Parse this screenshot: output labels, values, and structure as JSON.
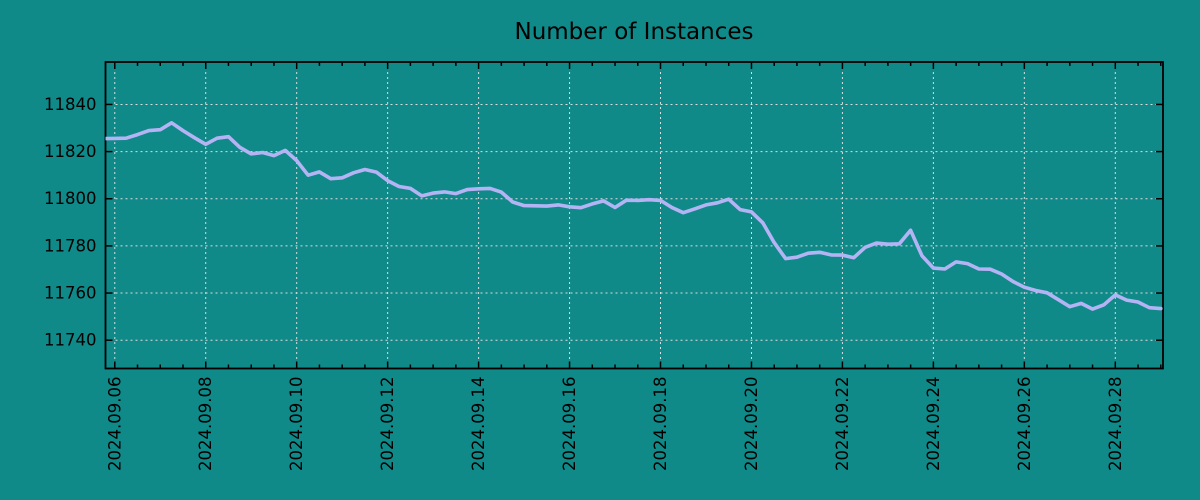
{
  "title": "Number of Instances",
  "colors": {
    "background": "#108989",
    "line": "#b4b4f5",
    "grid": "#dcdcdc",
    "axis": "#000000"
  },
  "chart_data": {
    "type": "line",
    "title": "Number of Instances",
    "xlabel": "",
    "ylabel": "",
    "grid": true,
    "legend": "none",
    "ylim": [
      11728,
      11858
    ],
    "y_ticks": [
      11740,
      11760,
      11780,
      11800,
      11820,
      11840
    ],
    "xlim_day": [
      5.796,
      29.049
    ],
    "x_major_days": [
      6,
      8,
      10,
      12,
      14,
      16,
      18,
      20,
      22,
      24,
      26,
      28
    ],
    "x_tick_labels": [
      "2024.09.06",
      "2024.09.08",
      "2024.09.10",
      "2024.09.12",
      "2024.09.14",
      "2024.09.16",
      "2024.09.18",
      "2024.09.20",
      "2024.09.22",
      "2024.09.24",
      "2024.09.26",
      "2024.09.28"
    ],
    "x_minor_interval_days": 0.5,
    "series": [
      {
        "name": "instances",
        "start": "2024-09-05 18:00",
        "step_hours": 6,
        "values": [
          11825.5,
          11825.6,
          11825.7,
          11827.2,
          11828.9,
          11829.3,
          11832.2,
          11828.9,
          11825.9,
          11823.1,
          11825.7,
          11826.3,
          11821.8,
          11819.0,
          11819.6,
          11818.3,
          11820.5,
          11816.2,
          11810.0,
          11811.4,
          11808.5,
          11808.9,
          11811.0,
          11812.4,
          11811.3,
          11807.7,
          11805.2,
          11804.4,
          11801.2,
          11802.4,
          11802.9,
          11802.2,
          11803.9,
          11804.2,
          11804.4,
          11802.8,
          11798.6,
          11797.1,
          11797.0,
          11796.9,
          11797.4,
          11796.6,
          11796.2,
          11797.8,
          11799.1,
          11796.3,
          11799.4,
          11799.3,
          11799.6,
          11799.3,
          11796.3,
          11794.1,
          11795.7,
          11797.4,
          11798.3,
          11799.8,
          11795.4,
          11794.4,
          11789.8,
          11781.4,
          11774.6,
          11775.2,
          11776.9,
          11777.3,
          11776.2,
          11776.1,
          11775.0,
          11779.4,
          11781.2,
          11780.7,
          11780.9,
          11786.6,
          11775.8,
          11770.6,
          11770.2,
          11773.2,
          11772.5,
          11770.2,
          11770.1,
          11768.1,
          11764.9,
          11762.5,
          11761.1,
          11760.1,
          11757.2,
          11754.2,
          11755.6,
          11753.2,
          11755.0,
          11759.2,
          11757.0,
          11756.2,
          11753.8,
          11753.4
        ]
      }
    ]
  }
}
